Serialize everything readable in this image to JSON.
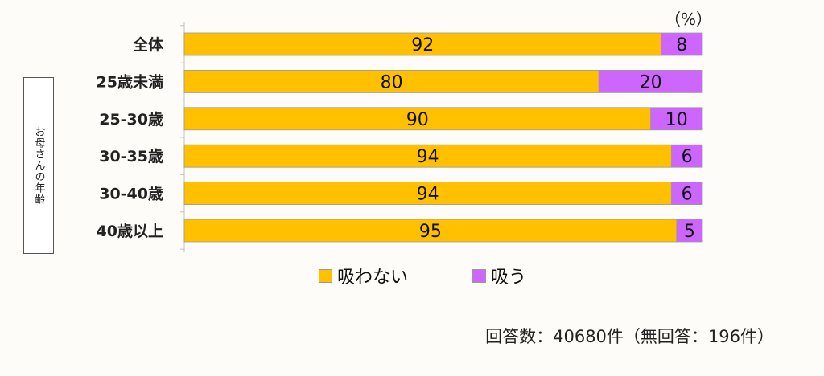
{
  "chart_data": {
    "type": "bar",
    "orientation": "horizontal",
    "stacked": true,
    "categories": [
      "全体",
      "25歳未満",
      "25-30歳",
      "30-35歳",
      "30-40歳",
      "40歳以上"
    ],
    "series": [
      {
        "name": "吸わない",
        "values": [
          92,
          80,
          90,
          94,
          94,
          95
        ],
        "color": "#ffc000"
      },
      {
        "name": "吸う",
        "values": [
          8,
          20,
          10,
          6,
          6,
          5
        ],
        "color": "#cc66ff"
      }
    ],
    "xlim": [
      0,
      100
    ],
    "ylabel": "お母さんの年齢",
    "unit_label": "（%）",
    "legend_position": "bottom",
    "grid": false,
    "footnote": "回答数：40680件（無回答：196件）"
  }
}
